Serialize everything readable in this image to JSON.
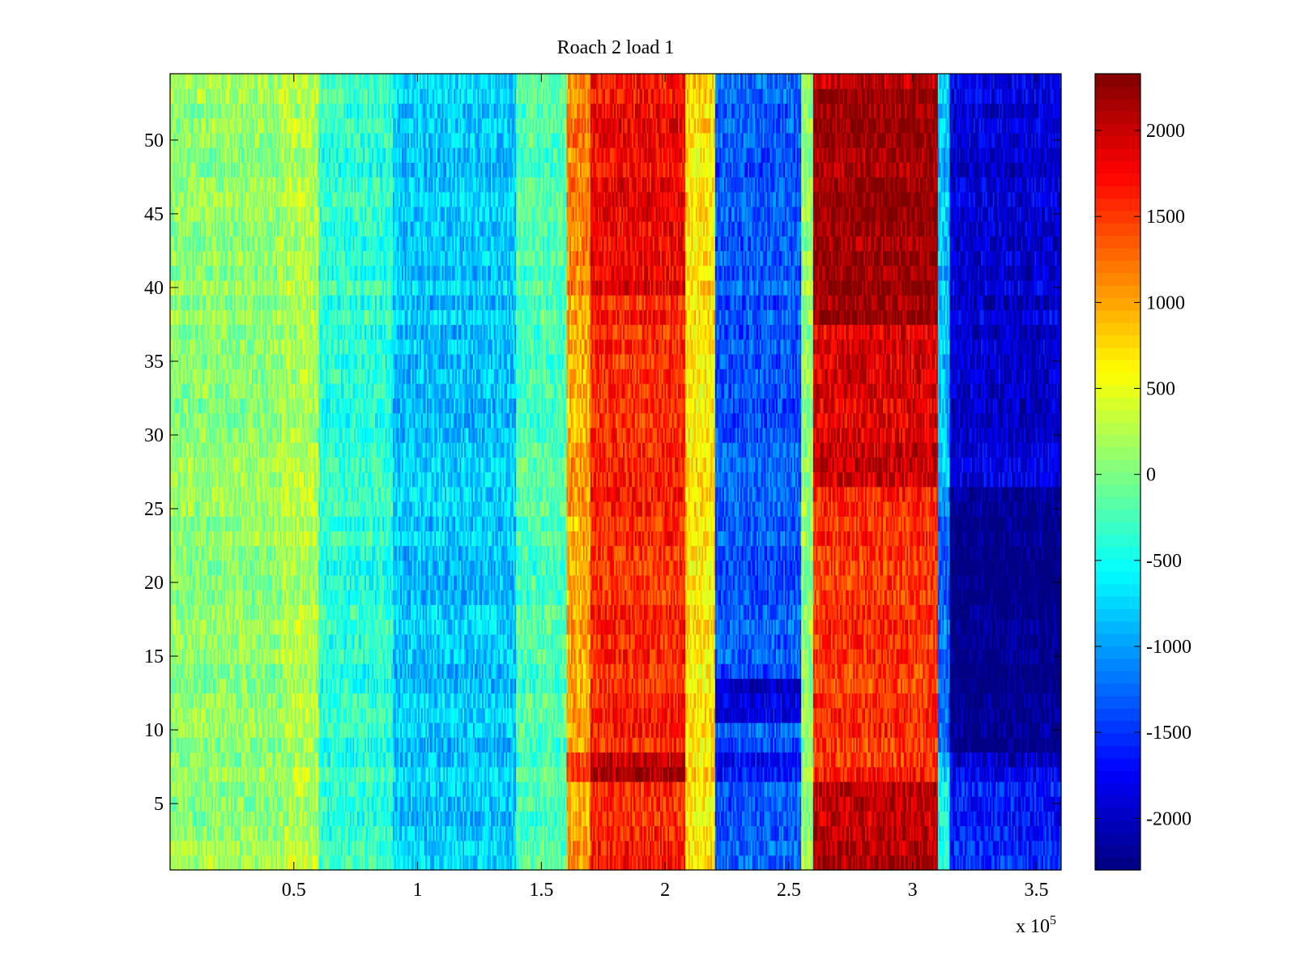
{
  "chart_data": {
    "type": "heatmap",
    "title": "Roach 2 load 1",
    "xlabel": "",
    "ylabel": "",
    "x_multiplier_label": "x 10",
    "x_multiplier_exponent": "5",
    "xlim": [
      0,
      3.6
    ],
    "ylim": [
      0.5,
      54.5
    ],
    "x_ticks": [
      {
        "value": 0.5,
        "label": "0.5"
      },
      {
        "value": 1.0,
        "label": "1"
      },
      {
        "value": 1.5,
        "label": "1.5"
      },
      {
        "value": 2.0,
        "label": "2"
      },
      {
        "value": 2.5,
        "label": "2.5"
      },
      {
        "value": 3.0,
        "label": "3"
      },
      {
        "value": 3.5,
        "label": "3.5"
      }
    ],
    "y_ticks": [
      {
        "value": 5,
        "label": "5"
      },
      {
        "value": 10,
        "label": "10"
      },
      {
        "value": 15,
        "label": "15"
      },
      {
        "value": 20,
        "label": "20"
      },
      {
        "value": 25,
        "label": "25"
      },
      {
        "value": 30,
        "label": "30"
      },
      {
        "value": 35,
        "label": "35"
      },
      {
        "value": 40,
        "label": "40"
      },
      {
        "value": 45,
        "label": "45"
      },
      {
        "value": 50,
        "label": "50"
      }
    ],
    "colorbar": {
      "colormap": "jet",
      "clim": [
        -2300,
        2330
      ],
      "ticks": [
        {
          "value": 2000,
          "label": "2000"
        },
        {
          "value": 1500,
          "label": "1500"
        },
        {
          "value": 1000,
          "label": "1000"
        },
        {
          "value": 500,
          "label": "500"
        },
        {
          "value": 0,
          "label": "0"
        },
        {
          "value": -500,
          "label": "-500"
        },
        {
          "value": -1000,
          "label": "-1000"
        },
        {
          "value": -1500,
          "label": "-1500"
        },
        {
          "value": -2000,
          "label": "-2000"
        }
      ]
    },
    "x_bands": [
      {
        "x_start": 0.0,
        "x_end": 0.45,
        "value": 100
      },
      {
        "x_start": 0.45,
        "x_end": 0.6,
        "value": 250
      },
      {
        "x_start": 0.6,
        "x_end": 0.9,
        "value": -350
      },
      {
        "x_start": 0.9,
        "x_end": 1.4,
        "value": -800
      },
      {
        "x_start": 1.4,
        "x_end": 1.6,
        "value": -200
      },
      {
        "x_start": 1.6,
        "x_end": 1.7,
        "value": 1000
      },
      {
        "x_start": 1.7,
        "x_end": 2.08,
        "value": 1600
      },
      {
        "x_start": 2.08,
        "x_end": 2.2,
        "value": 700
      },
      {
        "x_start": 2.2,
        "x_end": 2.55,
        "value": -1300
      },
      {
        "x_start": 2.55,
        "x_end": 2.6,
        "value": 100
      },
      {
        "x_start": 2.6,
        "x_end": 3.1,
        "value": 1800
      },
      {
        "x_start": 3.1,
        "x_end": 3.15,
        "value": -800
      },
      {
        "x_start": 3.15,
        "x_end": 3.6,
        "value": -1900
      }
    ],
    "row_segments": [
      {
        "y_start": 0.5,
        "y_end": 6.5,
        "note": "rows 1-6: strong red band at x 2.6-3.1e5, blue at 3.15-3.6e5"
      },
      {
        "y_start": 6.5,
        "y_end": 8.5,
        "note": "rows 7-8: dark red at x 1.65-2.05e5, dark blue at 3.1-3.6e5"
      },
      {
        "y_start": 8.5,
        "y_end": 26.5,
        "note": "rows 9-26: orange band at x 2.6-3.1e5, deepest blue at 3.1-3.6e5"
      },
      {
        "y_start": 26.5,
        "y_end": 54.5,
        "note": "rows 27-54: dark red band at x 2.6-3.1e5 strongest near rows 38-53"
      }
    ]
  }
}
